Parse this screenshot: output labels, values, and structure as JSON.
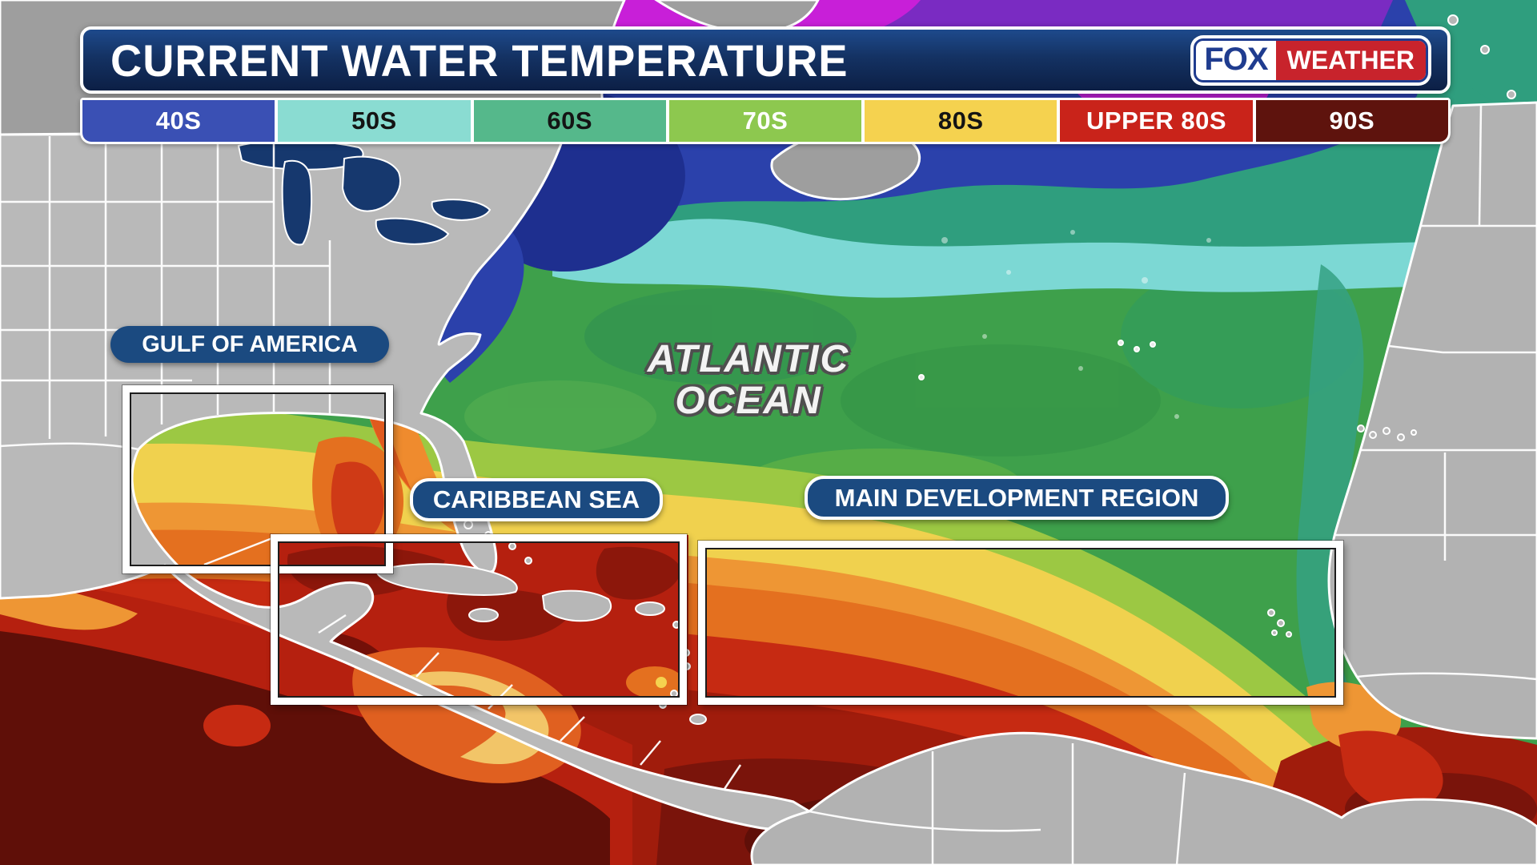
{
  "header": {
    "title": "CURRENT WATER TEMPERATURE",
    "logo": {
      "fox": "FOX",
      "weather": "WEATHER"
    }
  },
  "legend": {
    "items": [
      {
        "label": "40S",
        "color": "#3a50b4",
        "text_color": "#ffffff"
      },
      {
        "label": "50S",
        "color": "#8adcd2",
        "text_color": "#141414"
      },
      {
        "label": "60S",
        "color": "#55b88b",
        "text_color": "#141414"
      },
      {
        "label": "70S",
        "color": "#8dc84f",
        "text_color": "#ffffff"
      },
      {
        "label": "80S",
        "color": "#f5d24f",
        "text_color": "#141414"
      },
      {
        "label": "UPPER 80S",
        "color": "#c9231a",
        "text_color": "#ffffff"
      },
      {
        "label": "90S",
        "color": "#5e130d",
        "text_color": "#ffffff"
      }
    ]
  },
  "map": {
    "ocean_label_line1": "ATLANTIC",
    "ocean_label_line2": "OCEAN",
    "regions": [
      {
        "label": "GULF OF AMERICA"
      },
      {
        "label": "CARIBBEAN SEA"
      },
      {
        "label": "MAIN DEVELOPMENT REGION"
      }
    ],
    "colors": {
      "label_pill_navy": "#1b4a80",
      "header_navy": "#122d5e",
      "logo_red": "#c8232c",
      "logo_blue": "#1f3c8f",
      "land_gray": "#b9b9b9",
      "lake_navy": "#16386e"
    }
  }
}
